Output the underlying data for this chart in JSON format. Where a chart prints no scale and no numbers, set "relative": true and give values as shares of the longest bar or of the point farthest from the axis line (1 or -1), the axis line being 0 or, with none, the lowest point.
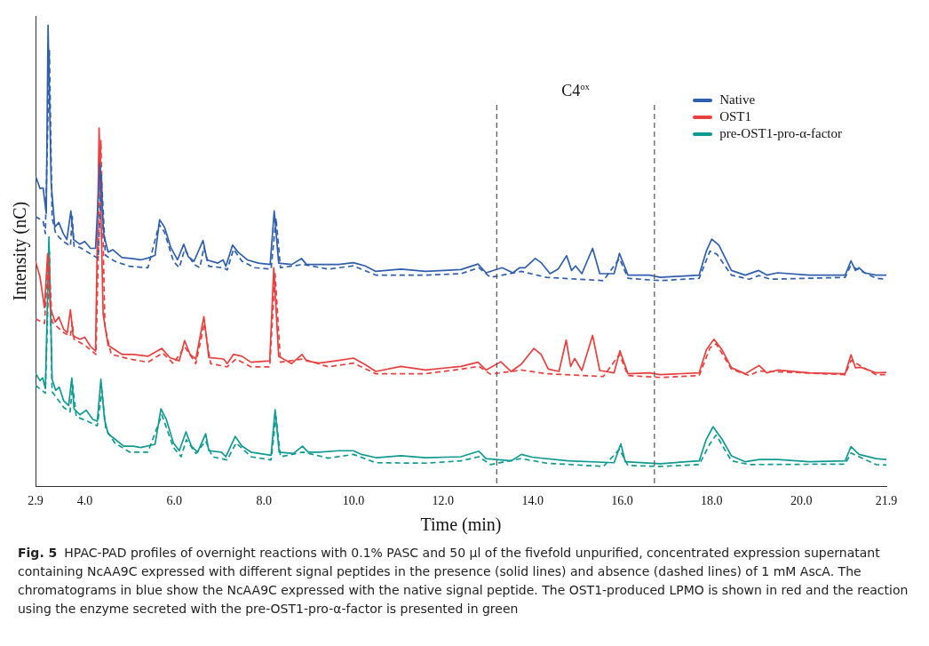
{
  "chart_data": {
    "type": "line",
    "relative": true,
    "xlabel": "Time (min)",
    "ylabel": "Intensity (nC)",
    "legend": "top right",
    "xlim": [
      2.9,
      21.9
    ],
    "xticks": [
      2.9,
      {
        "value": 4,
        "label": "4.0"
      },
      {
        "value": 6,
        "label": "6.0"
      },
      {
        "value": 8,
        "label": "8.0"
      },
      {
        "value": 10,
        "label": "10.0"
      },
      {
        "value": 12,
        "label": "12.0"
      },
      {
        "value": 14,
        "label": "14.0"
      },
      {
        "value": 16,
        "label": "16.0"
      },
      {
        "value": 18,
        "label": "18.0"
      },
      {
        "value": 20,
        "label": "20.0"
      },
      21.9
    ],
    "ref_lines": [
      {
        "axis": "x",
        "value": 13.2,
        "color": "#555555",
        "line_style": "dashed"
      },
      {
        "axis": "x",
        "value": 16.72,
        "color": "#555555",
        "line_style": "dashed"
      }
    ],
    "annotations": [
      "C4$^{ox}$",
      "Fig. 5",
      "HPAC-PAD profiles of overnight reactions with 0.1% PASC and 50 µl of the fivefold unpurified, concentrated expression supernatant containing NcAA9C expressed with different signal peptides in the presence (solid lines) and absence (dashed lines) of 1 mM AscA. The chromatograms in blue show the NcAA9C expressed with the native signal peptide. The OST1-produced LPMO is shown in red and the reaction using the enzyme secreted with the pre-OST1-pro-α-factor is presented in green"
    ],
    "series": [
      {
        "name": "Native",
        "color": "#2f5fae",
        "x": [
          2.9,
          3.0,
          3.07,
          3.14,
          3.18,
          3.25,
          3.33,
          3.42,
          3.52,
          3.6,
          3.69,
          3.75,
          3.89,
          4.0,
          4.13,
          4.24,
          4.34,
          4.42,
          4.52,
          4.63,
          4.83,
          5.04,
          5.25,
          5.45,
          5.57,
          5.67,
          5.78,
          5.92,
          6.07,
          6.21,
          6.31,
          6.44,
          6.64,
          6.73,
          6.97,
          7.09,
          7.15,
          7.3,
          7.42,
          7.63,
          7.88,
          8.14,
          8.23,
          8.33,
          8.62,
          8.84,
          8.95,
          9.23,
          9.67,
          10.0,
          10.26,
          10.5,
          11.06,
          11.61,
          12.4,
          12.78,
          12.96,
          13.32,
          13.56,
          13.71,
          13.83,
          14.06,
          14.19,
          14.39,
          14.57,
          14.76,
          14.87,
          14.96,
          15.1,
          15.34,
          15.5,
          15.82,
          15.94,
          16.13,
          16.61,
          16.85,
          17.72,
          17.88,
          18.0,
          18.16,
          18.44,
          18.75,
          19.05,
          19.23,
          19.47,
          20.18,
          20.98,
          21.11,
          21.21,
          21.29,
          21.41,
          21.67,
          21.9
        ],
        "values": [
          0.673,
          0.646,
          0.647,
          0.592,
          1.0,
          0.656,
          0.562,
          0.572,
          0.548,
          0.535,
          0.597,
          0.535,
          0.525,
          0.531,
          0.516,
          0.516,
          0.699,
          0.548,
          0.508,
          0.513,
          0.496,
          0.494,
          0.491,
          0.496,
          0.501,
          0.578,
          0.562,
          0.518,
          0.491,
          0.525,
          0.498,
          0.488,
          0.533,
          0.491,
          0.484,
          0.491,
          0.477,
          0.523,
          0.508,
          0.491,
          0.484,
          0.481,
          0.597,
          0.484,
          0.481,
          0.494,
          0.481,
          0.481,
          0.481,
          0.485,
          0.478,
          0.466,
          0.471,
          0.466,
          0.47,
          0.482,
          0.463,
          0.474,
          0.463,
          0.474,
          0.474,
          0.494,
          0.485,
          0.461,
          0.471,
          0.5,
          0.468,
          0.478,
          0.461,
          0.516,
          0.461,
          0.461,
          0.505,
          0.458,
          0.458,
          0.453,
          0.458,
          0.51,
          0.536,
          0.523,
          0.468,
          0.458,
          0.468,
          0.458,
          0.463,
          0.458,
          0.458,
          0.489,
          0.468,
          0.474,
          0.463,
          0.458,
          0.458
        ]
      },
      {
        "color": "#2f5fae",
        "line_style": "dashed",
        "x": [
          2.9,
          3.07,
          3.12,
          3.21,
          3.27,
          3.35,
          3.52,
          3.68,
          3.72,
          3.76,
          3.89,
          4.18,
          4.3,
          4.37,
          4.46,
          4.67,
          5.0,
          5.41,
          5.66,
          5.78,
          5.98,
          6.11,
          6.23,
          6.44,
          6.57,
          6.66,
          6.77,
          7.1,
          7.18,
          7.32,
          7.51,
          7.8,
          8.16,
          8.27,
          8.37,
          8.87,
          9.44,
          10.0,
          10.5,
          11.61,
          12.4,
          12.8,
          13.06,
          13.75,
          14.31,
          15.58,
          15.94,
          16.13,
          16.85,
          17.72,
          17.96,
          18.12,
          18.44,
          18.84,
          19.05,
          19.31,
          20.98,
          21.1,
          21.67,
          21.9
        ],
        "values": [
          0.585,
          0.575,
          0.548,
          0.945,
          0.582,
          0.548,
          0.531,
          0.521,
          0.585,
          0.521,
          0.518,
          0.501,
          0.494,
          0.676,
          0.501,
          0.488,
          0.477,
          0.474,
          0.568,
          0.551,
          0.488,
          0.474,
          0.514,
          0.481,
          0.474,
          0.518,
          0.477,
          0.474,
          0.469,
          0.514,
          0.488,
          0.474,
          0.471,
          0.582,
          0.474,
          0.481,
          0.471,
          0.478,
          0.458,
          0.458,
          0.461,
          0.474,
          0.453,
          0.466,
          0.453,
          0.446,
          0.494,
          0.451,
          0.446,
          0.451,
          0.51,
          0.503,
          0.458,
          0.449,
          0.457,
          0.449,
          0.453,
          0.478,
          0.451,
          0.449
        ]
      },
      {
        "name": "OST1",
        "color": "#e8403f",
        "x": [
          2.9,
          3.0,
          3.1,
          3.17,
          3.23,
          3.34,
          3.42,
          3.53,
          3.61,
          3.68,
          3.74,
          3.89,
          4.0,
          4.13,
          4.24,
          4.32,
          4.41,
          4.52,
          4.83,
          5.08,
          5.41,
          5.72,
          5.9,
          6.11,
          6.23,
          6.35,
          6.48,
          6.66,
          6.77,
          7.1,
          7.18,
          7.32,
          7.51,
          7.71,
          8.13,
          8.22,
          8.33,
          8.62,
          8.85,
          8.95,
          9.23,
          9.67,
          10.0,
          10.26,
          10.5,
          11.06,
          11.61,
          12.4,
          12.78,
          12.96,
          13.29,
          13.52,
          13.75,
          14.03,
          14.19,
          14.35,
          14.59,
          14.75,
          14.85,
          14.94,
          15.1,
          15.34,
          15.5,
          15.82,
          15.95,
          16.13,
          16.61,
          16.85,
          17.72,
          17.88,
          18.05,
          18.23,
          18.44,
          18.75,
          19.06,
          19.23,
          19.47,
          20.18,
          20.98,
          21.11,
          21.21,
          21.33,
          21.67,
          21.9
        ],
        "values": [
          0.488,
          0.454,
          0.387,
          0.504,
          0.387,
          0.356,
          0.367,
          0.34,
          0.333,
          0.383,
          0.326,
          0.319,
          0.323,
          0.303,
          0.293,
          0.777,
          0.373,
          0.306,
          0.286,
          0.286,
          0.282,
          0.299,
          0.279,
          0.272,
          0.316,
          0.286,
          0.276,
          0.368,
          0.279,
          0.276,
          0.266,
          0.286,
          0.282,
          0.269,
          0.272,
          0.474,
          0.282,
          0.266,
          0.286,
          0.272,
          0.267,
          0.273,
          0.278,
          0.264,
          0.249,
          0.26,
          0.252,
          0.26,
          0.269,
          0.252,
          0.27,
          0.249,
          0.265,
          0.299,
          0.286,
          0.254,
          0.249,
          0.317,
          0.26,
          0.277,
          0.251,
          0.327,
          0.251,
          0.246,
          0.294,
          0.244,
          0.246,
          0.242,
          0.246,
          0.296,
          0.319,
          0.296,
          0.257,
          0.244,
          0.262,
          0.246,
          0.252,
          0.246,
          0.244,
          0.285,
          0.257,
          0.258,
          0.246,
          0.247
        ]
      },
      {
        "color": "#e8403f",
        "line_style": "dashed",
        "x": [
          2.9,
          3.1,
          3.19,
          3.27,
          3.53,
          3.68,
          3.72,
          3.76,
          4.0,
          4.25,
          4.36,
          4.45,
          4.59,
          5.0,
          5.41,
          5.74,
          5.98,
          6.23,
          6.48,
          6.67,
          6.81,
          7.18,
          7.38,
          7.71,
          8.13,
          8.25,
          8.37,
          8.87,
          9.44,
          10.0,
          10.5,
          11.61,
          12.4,
          12.8,
          13.06,
          13.75,
          14.31,
          15.58,
          15.94,
          16.13,
          16.85,
          17.72,
          17.96,
          18.1,
          18.44,
          18.84,
          19.05,
          20.98,
          21.11,
          21.67,
          21.9
        ],
        "values": [
          0.363,
          0.353,
          0.501,
          0.356,
          0.333,
          0.326,
          0.356,
          0.319,
          0.306,
          0.286,
          0.75,
          0.346,
          0.286,
          0.276,
          0.269,
          0.289,
          0.266,
          0.303,
          0.266,
          0.353,
          0.266,
          0.259,
          0.276,
          0.259,
          0.259,
          0.461,
          0.269,
          0.276,
          0.259,
          0.267,
          0.244,
          0.244,
          0.254,
          0.26,
          0.243,
          0.252,
          0.244,
          0.238,
          0.286,
          0.24,
          0.236,
          0.24,
          0.3,
          0.309,
          0.254,
          0.24,
          0.25,
          0.242,
          0.273,
          0.242,
          0.242
        ]
      },
      {
        "name": "pre-OST1-pro-α-factor",
        "color": "#0f9a92",
        "x": [
          2.9,
          3.0,
          3.06,
          3.12,
          3.2,
          3.27,
          3.35,
          3.43,
          3.53,
          3.64,
          3.71,
          3.76,
          3.89,
          4.03,
          4.18,
          4.28,
          4.36,
          4.44,
          4.52,
          4.65,
          4.87,
          5.08,
          5.25,
          5.57,
          5.7,
          5.82,
          5.98,
          6.11,
          6.26,
          6.38,
          6.52,
          6.7,
          6.77,
          7.05,
          7.15,
          7.36,
          7.51,
          7.71,
          8.16,
          8.25,
          8.34,
          8.66,
          8.86,
          8.99,
          9.23,
          9.67,
          10.0,
          10.18,
          10.5,
          11.06,
          11.61,
          12.4,
          12.8,
          12.96,
          13.52,
          13.75,
          13.99,
          14.79,
          15.82,
          15.97,
          16.07,
          16.85,
          17.72,
          17.88,
          18.03,
          18.23,
          18.44,
          18.75,
          19.06,
          19.47,
          20.18,
          20.98,
          21.11,
          21.29,
          21.67,
          21.9
        ],
        "values": [
          0.245,
          0.229,
          0.235,
          0.212,
          0.541,
          0.232,
          0.208,
          0.215,
          0.185,
          0.175,
          0.235,
          0.168,
          0.155,
          0.165,
          0.145,
          0.141,
          0.232,
          0.145,
          0.114,
          0.104,
          0.087,
          0.087,
          0.084,
          0.091,
          0.168,
          0.145,
          0.094,
          0.077,
          0.118,
          0.087,
          0.074,
          0.114,
          0.077,
          0.074,
          0.064,
          0.108,
          0.087,
          0.074,
          0.067,
          0.166,
          0.074,
          0.071,
          0.087,
          0.074,
          0.074,
          0.077,
          0.077,
          0.069,
          0.062,
          0.066,
          0.062,
          0.064,
          0.076,
          0.06,
          0.055,
          0.069,
          0.063,
          0.055,
          0.051,
          0.092,
          0.053,
          0.049,
          0.055,
          0.102,
          0.129,
          0.102,
          0.066,
          0.053,
          0.058,
          0.058,
          0.053,
          0.055,
          0.086,
          0.069,
          0.06,
          0.058
        ]
      },
      {
        "color": "#0f9a92",
        "line_style": "dashed",
        "x": [
          2.9,
          3.12,
          3.21,
          3.27,
          3.53,
          3.67,
          3.73,
          3.81,
          4.06,
          4.28,
          4.38,
          4.47,
          4.67,
          5.0,
          5.41,
          5.72,
          5.98,
          6.15,
          6.27,
          6.48,
          6.7,
          6.85,
          7.18,
          7.38,
          7.71,
          8.16,
          8.27,
          8.37,
          8.87,
          9.44,
          10.0,
          10.5,
          11.61,
          12.4,
          12.8,
          13.06,
          13.75,
          14.31,
          15.58,
          15.94,
          16.13,
          16.85,
          17.72,
          17.96,
          18.1,
          18.44,
          18.84,
          20.98,
          21.11,
          21.67,
          21.9
        ],
        "values": [
          0.219,
          0.202,
          0.508,
          0.205,
          0.171,
          0.161,
          0.219,
          0.151,
          0.141,
          0.131,
          0.208,
          0.124,
          0.094,
          0.074,
          0.074,
          0.155,
          0.084,
          0.064,
          0.101,
          0.071,
          0.098,
          0.064,
          0.057,
          0.094,
          0.064,
          0.057,
          0.151,
          0.064,
          0.074,
          0.061,
          0.069,
          0.051,
          0.05,
          0.055,
          0.064,
          0.047,
          0.06,
          0.05,
          0.043,
          0.08,
          0.045,
          0.043,
          0.047,
          0.092,
          0.111,
          0.055,
          0.047,
          0.048,
          0.072,
          0.047,
          0.046
        ]
      }
    ]
  }
}
